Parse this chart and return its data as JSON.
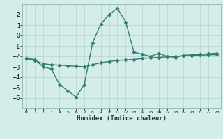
{
  "xlabel": "Humidex (Indice chaleur)",
  "x": [
    0,
    1,
    2,
    3,
    4,
    5,
    6,
    7,
    8,
    9,
    10,
    11,
    12,
    13,
    14,
    15,
    16,
    17,
    18,
    19,
    20,
    21,
    22,
    23
  ],
  "line1_y": [
    -2.2,
    -2.3,
    -3.0,
    -3.2,
    -4.7,
    -5.3,
    -5.9,
    -4.7,
    -0.7,
    1.1,
    2.0,
    2.6,
    1.3,
    -1.6,
    -1.8,
    -2.0,
    -1.7,
    -2.0,
    -2.1,
    -1.9,
    -1.85,
    -1.8,
    -1.75,
    -1.7
  ],
  "line2_y": [
    -2.2,
    -2.4,
    -2.7,
    -2.8,
    -2.85,
    -2.9,
    -2.95,
    -3.0,
    -2.8,
    -2.6,
    -2.5,
    -2.4,
    -2.35,
    -2.3,
    -2.2,
    -2.15,
    -2.1,
    -2.05,
    -2.0,
    -1.95,
    -1.92,
    -1.89,
    -1.86,
    -1.83
  ],
  "line_color": "#2e7d6e",
  "bg_color": "#d4ecea",
  "grid_color": "#b8d8d4",
  "ylim": [
    -7,
    3
  ],
  "yticks": [
    -6,
    -5,
    -4,
    -3,
    -2,
    -1,
    0,
    1,
    2
  ],
  "marker": "D",
  "markersize": 2.5,
  "linewidth": 1.0
}
